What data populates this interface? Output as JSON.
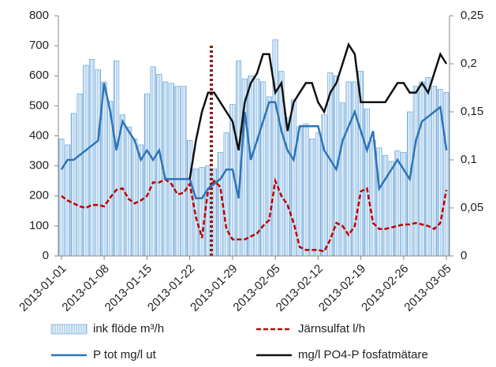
{
  "chart_data": {
    "type": "bar",
    "categories": [
      "2013-01-01",
      null,
      null,
      null,
      null,
      null,
      null,
      "2013-01-08",
      null,
      null,
      null,
      null,
      null,
      null,
      "2013-01-15",
      null,
      null,
      null,
      null,
      null,
      null,
      "2013-01-22",
      null,
      null,
      null,
      null,
      null,
      null,
      "2013-01-29",
      null,
      null,
      null,
      null,
      null,
      null,
      "2013-02-05",
      null,
      null,
      null,
      null,
      null,
      null,
      "2013-02-12",
      null,
      null,
      null,
      null,
      null,
      null,
      "2013-02-19",
      null,
      null,
      null,
      null,
      null,
      null,
      "2013-02-26",
      null,
      null,
      null,
      null,
      null,
      null,
      "2013-03-05"
    ],
    "series": [
      {
        "name": "ink flöde m³/h",
        "type": "bar",
        "color": "#5b9bd5",
        "values": [
          390,
          370,
          475,
          540,
          635,
          655,
          620,
          580,
          515,
          650,
          470,
          430,
          390,
          370,
          540,
          630,
          605,
          580,
          575,
          565,
          565,
          385,
          290,
          295,
          300,
          290,
          345,
          410,
          505,
          650,
          590,
          600,
          590,
          580,
          530,
          720,
          615,
          460,
          520,
          430,
          440,
          390,
          410,
          470,
          610,
          600,
          510,
          580,
          580,
          615,
          490,
          385,
          360,
          335,
          315,
          350,
          345,
          480,
          565,
          580,
          595,
          565,
          555,
          545
        ]
      },
      {
        "name": "Järnsulfat l/h",
        "type": "line",
        "dashed": true,
        "color": "#c00000",
        "values": [
          200,
          185,
          175,
          165,
          160,
          170,
          170,
          165,
          195,
          220,
          225,
          190,
          175,
          185,
          200,
          245,
          245,
          255,
          240,
          205,
          210,
          240,
          130,
          60,
          220,
          250,
          230,
          90,
          55,
          55,
          55,
          65,
          75,
          100,
          120,
          250,
          200,
          170,
          110,
          30,
          20,
          20,
          20,
          15,
          55,
          110,
          100,
          70,
          100,
          215,
          225,
          110,
          90,
          90,
          95,
          100,
          105,
          105,
          110,
          105,
          100,
          90,
          110,
          220
        ]
      },
      {
        "name": "P tot mg/l ut",
        "type": "line",
        "axis": "y2",
        "color": "#2e75b6",
        "values": [
          0.09,
          0.1,
          0.1,
          0.105,
          0.11,
          0.115,
          0.12,
          0.18,
          0.15,
          0.11,
          0.14,
          0.13,
          0.12,
          0.1,
          0.11,
          0.1,
          0.11,
          0.08,
          0.08,
          0.08,
          0.08,
          0.08,
          0.06,
          0.06,
          0.07,
          0.075,
          0.08,
          0.09,
          0.09,
          0.06,
          0.15,
          0.1,
          0.12,
          0.14,
          0.16,
          0.16,
          0.13,
          0.11,
          0.1,
          0.135,
          0.135,
          0.135,
          0.135,
          0.11,
          0.1,
          0.09,
          0.12,
          0.135,
          0.15,
          0.13,
          0.11,
          0.13,
          0.07,
          0.08,
          0.09,
          0.1,
          0.09,
          0.08,
          0.12,
          0.14,
          0.145,
          0.15,
          0.155,
          0.11
        ]
      },
      {
        "name": "mg/l PO4-P fosfatmätare",
        "type": "line",
        "axis": "y2",
        "color": "#111111",
        "values": [
          null,
          null,
          null,
          null,
          null,
          null,
          null,
          null,
          null,
          null,
          null,
          null,
          null,
          null,
          null,
          null,
          null,
          null,
          null,
          null,
          null,
          0.08,
          0.12,
          0.15,
          0.17,
          0.17,
          0.16,
          0.15,
          0.14,
          0.11,
          0.16,
          0.18,
          0.19,
          0.21,
          0.21,
          0.17,
          0.18,
          0.13,
          0.16,
          0.17,
          0.18,
          0.18,
          0.16,
          0.15,
          0.17,
          0.18,
          0.2,
          0.22,
          0.21,
          0.16,
          0.16,
          0.16,
          0.16,
          0.16,
          0.17,
          0.18,
          0.18,
          0.17,
          0.17,
          0.18,
          0.17,
          0.19,
          0.21,
          0.2
        ]
      }
    ],
    "ylim": [
      0,
      800
    ],
    "yticks": [
      0,
      100,
      200,
      300,
      400,
      500,
      600,
      700,
      800
    ],
    "y2lim": [
      0,
      0.25
    ],
    "y2ticks": [
      0,
      {
        "value": 0.05,
        "label": "0,05"
      },
      {
        "value": 0.1,
        "label": "0,1"
      },
      {
        "value": 0.15,
        "label": "0,15"
      },
      {
        "value": 0.2,
        "label": "0,2"
      },
      {
        "value": 0.25,
        "label": "0,25"
      }
    ],
    "grid": false,
    "legend": "bottom"
  }
}
